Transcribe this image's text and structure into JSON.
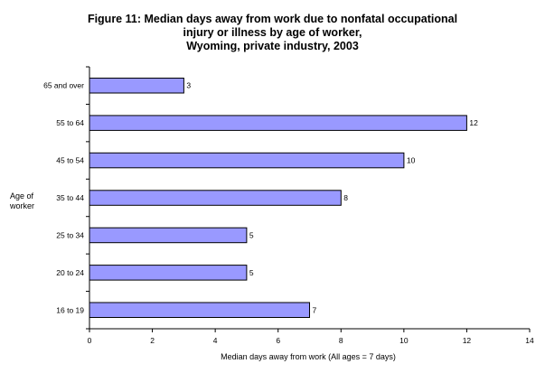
{
  "chart_data": {
    "type": "bar",
    "orientation": "horizontal",
    "title_lines": [
      "Figure 11: Median days away from work due to nonfatal occupational",
      "injury or illness by age of worker,",
      "Wyoming, private industry, 2003"
    ],
    "ylabel_lines": [
      "Age of",
      "worker"
    ],
    "xlabel": "Median days away from work (All ages = 7 days)",
    "categories": [
      "65 and over",
      "55 to 64",
      "45 to 54",
      "35 to 44",
      "25 to 34",
      "20 to 24",
      "16 to 19"
    ],
    "values": [
      3,
      12,
      10,
      8,
      5,
      5,
      7
    ],
    "xlim": [
      0,
      14
    ],
    "xticks": [
      0,
      2,
      4,
      6,
      8,
      10,
      12,
      14
    ],
    "grid": false,
    "legend": "none",
    "colors": {
      "bar_fill": "#9999ff",
      "bar_stroke": "#000000",
      "axis": "#000000"
    }
  }
}
